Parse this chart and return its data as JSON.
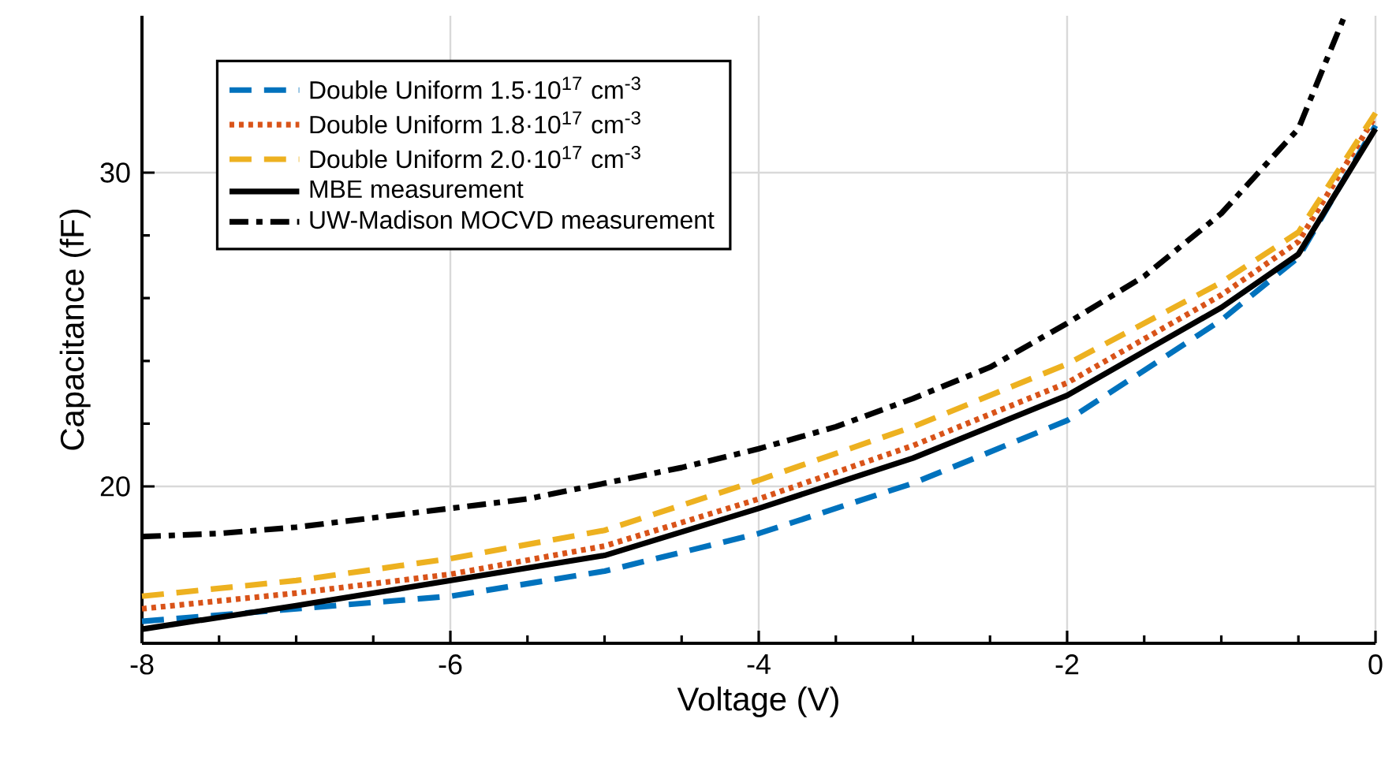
{
  "chart_data": {
    "type": "line",
    "xlabel": "Voltage (V)",
    "ylabel": "Capacitance (fF)",
    "xlim": [
      -8,
      0
    ],
    "ylim": [
      15,
      35
    ],
    "xticks": [
      -8,
      -6,
      -4,
      -2,
      0
    ],
    "yticks": [
      20,
      30
    ],
    "grid": true,
    "legend": "top left",
    "x": [
      -8,
      -7,
      -6,
      -5,
      -4,
      -3,
      -2,
      -1,
      -0.5,
      0
    ],
    "series": [
      {
        "name": "Double Uniform 1.5·10$^{17}$ cm$^{-3}$",
        "color": "#0072bd",
        "line_style": "dashed",
        "values": [
          15.7,
          16.1,
          16.5,
          17.3,
          18.5,
          20.1,
          22.1,
          25.3,
          27.3,
          31.5
        ]
      },
      {
        "name": "Double Uniform 1.8·10$^{17}$ cm$^{-3}$",
        "color": "#d95319",
        "line_style": "dotted",
        "values": [
          16.1,
          16.6,
          17.2,
          18.1,
          19.6,
          21.3,
          23.3,
          26.1,
          27.8,
          31.8
        ]
      },
      {
        "name": "Double Uniform 2.0·10$^{17}$ cm$^{-3}$",
        "color": "#edb120",
        "line_style": "dashed",
        "values": [
          16.5,
          17.0,
          17.7,
          18.6,
          20.2,
          21.9,
          23.9,
          26.5,
          28.1,
          31.9
        ]
      },
      {
        "name": "MBE measurement",
        "color": "#000000",
        "line_style": "solid",
        "values": [
          15.45,
          16.2,
          17.0,
          17.8,
          19.3,
          20.9,
          22.9,
          25.7,
          27.4,
          31.4
        ]
      },
      {
        "name": "UW-Madison MOCVD measurement",
        "color": "#000000",
        "line_style": "dashdot",
        "x": [
          -8,
          -7.5,
          -7,
          -6,
          -5.5,
          -5,
          -4.5,
          -4,
          -3.5,
          -3,
          -2.5,
          -2,
          -1.5,
          -1,
          -0.5,
          -0.2
        ],
        "values": [
          18.4,
          18.5,
          18.7,
          19.3,
          19.6,
          20.1,
          20.6,
          21.2,
          21.9,
          22.8,
          23.8,
          25.2,
          26.7,
          28.7,
          31.4,
          35
        ]
      }
    ]
  }
}
